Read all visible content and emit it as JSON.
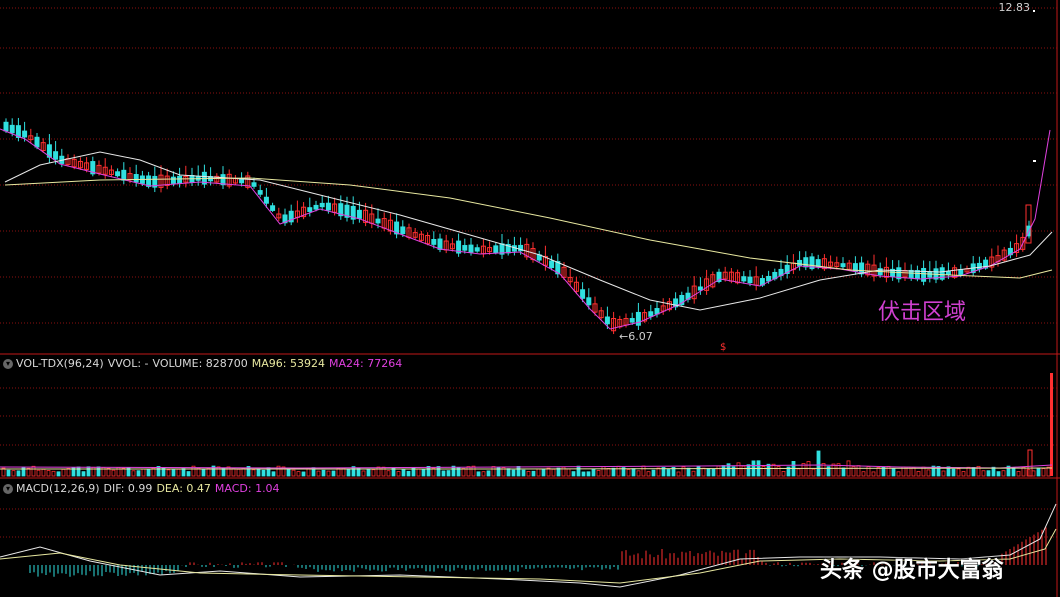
{
  "price_panel": {
    "price_top": "12.83",
    "low_label": "6.07",
    "zone_label": "伏击区域",
    "signal_marker": "$"
  },
  "vol_panel": {
    "title": "VOL-TDX(96,24)",
    "vvol": "VVOL: -",
    "volume": "VOLUME: 828700",
    "ma96": "MA96: 53924",
    "ma24": "MA24: 77264"
  },
  "macd_panel": {
    "title": "MACD(12,26,9)",
    "dif": "DIF: 0.99",
    "dea": "DEA: 0.47",
    "macd": "MACD: 1.04"
  },
  "watermark": "头条 @股市大富翁",
  "colors": {
    "up": "#ff3030",
    "down": "#30e0e0",
    "ma_short": "#e040e0",
    "ma_mid": "#e8e8e8",
    "ma_long": "#e8e8a0",
    "grid": "#8a1010"
  }
}
